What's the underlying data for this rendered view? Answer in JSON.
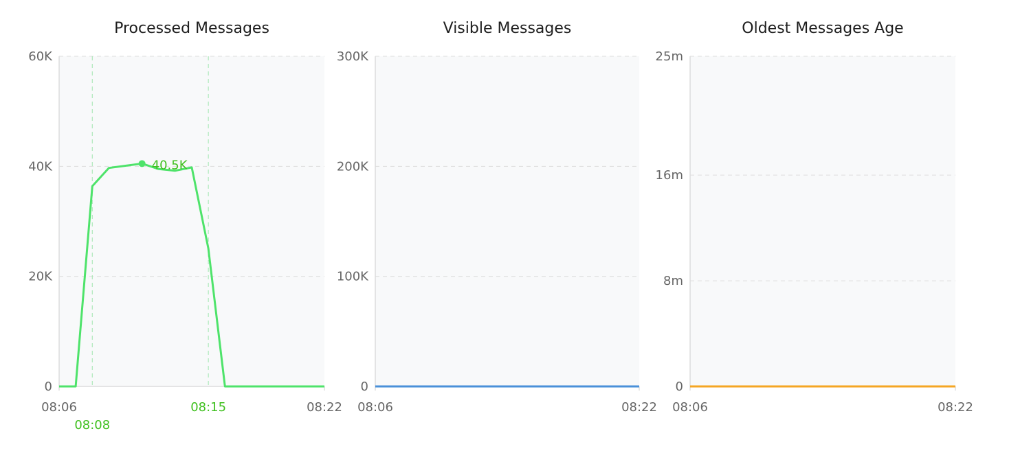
{
  "chart_data": [
    {
      "type": "line",
      "title": "Processed Messages",
      "x": [
        "08:06",
        "08:07",
        "08:08",
        "08:09",
        "08:10",
        "08:11",
        "08:12",
        "08:13",
        "08:14",
        "08:15",
        "08:16",
        "08:22"
      ],
      "series": [
        {
          "values": [
            0,
            0,
            36400,
            39700,
            40100,
            40500,
            39500,
            39200,
            39800,
            25100,
            0,
            0
          ],
          "color": "#4ee36a"
        }
      ],
      "xlim": [
        "08:06",
        "08:22"
      ],
      "xticks": [
        "08:06",
        "08:22"
      ],
      "highlighted_xticks": [
        "08:08",
        "08:15"
      ],
      "highlight_color": "#40c020",
      "ylim": [
        0,
        60000
      ],
      "yticks": [
        "0",
        "20K",
        "40K",
        "60K"
      ],
      "ytick_values": [
        0,
        20000,
        40000,
        60000
      ],
      "annotation": {
        "x": "08:11",
        "y": 40500,
        "label": "40.5K"
      },
      "grid": true
    },
    {
      "type": "line",
      "title": "Visible Messages",
      "x": [
        "08:06",
        "08:22"
      ],
      "series": [
        {
          "values": [
            0,
            0
          ],
          "color": "#4a90d9"
        }
      ],
      "xlim": [
        "08:06",
        "08:22"
      ],
      "xticks": [
        "08:06",
        "08:22"
      ],
      "ylim": [
        0,
        300000
      ],
      "yticks": [
        "0",
        "100K",
        "200K",
        "300K"
      ],
      "ytick_values": [
        0,
        100000,
        200000,
        300000
      ],
      "grid": true
    },
    {
      "type": "line",
      "title": "Oldest Messages Age",
      "x": [
        "08:06",
        "08:22"
      ],
      "series": [
        {
          "values": [
            0,
            0
          ],
          "color": "#f5a623"
        }
      ],
      "xlim": [
        "08:06",
        "08:22"
      ],
      "xticks": [
        "08:06",
        "08:22"
      ],
      "ylim": [
        0,
        25
      ],
      "yticks": [
        "0",
        "8m",
        "16m",
        "25m"
      ],
      "ytick_values": [
        0,
        8,
        16,
        25
      ],
      "grid": true
    }
  ]
}
